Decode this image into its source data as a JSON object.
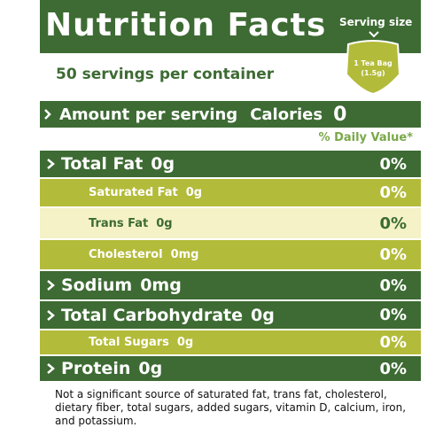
{
  "header": {
    "title": "Nutrition Facts",
    "serving_size_label": "Serving size",
    "serving_size_value": "1 Tea Bag (1.5g)"
  },
  "servings": "50 servings per container",
  "amount": {
    "label": "Amount per serving",
    "calories_label": "Calories",
    "calories_value": "0"
  },
  "daily_value_header": "% Daily Value*",
  "rows": [
    {
      "name": "Total Fat",
      "amount": "0g",
      "dv": "0%"
    },
    {
      "name": "Saturated Fat",
      "amount": "0g",
      "dv": "0%"
    },
    {
      "name": "Trans Fat",
      "amount": "0g",
      "dv": "0%"
    },
    {
      "name": "Cholesterol",
      "amount": "0mg",
      "dv": "0%"
    },
    {
      "name": "Sodium",
      "amount": "0mg",
      "dv": "0%"
    },
    {
      "name": "Total Carbohydrate",
      "amount": "0g",
      "dv": "0%"
    },
    {
      "name": "Total Sugars",
      "amount": "0g",
      "dv": "0%"
    },
    {
      "name": "Protein",
      "amount": "0g",
      "dv": "0%"
    }
  ],
  "footnote": "Not a significant source of saturated fat, trans fat, cholesterol, dietary fiber, total sugars, added sugars, vitamin D, calcium, iron, and potassium."
}
